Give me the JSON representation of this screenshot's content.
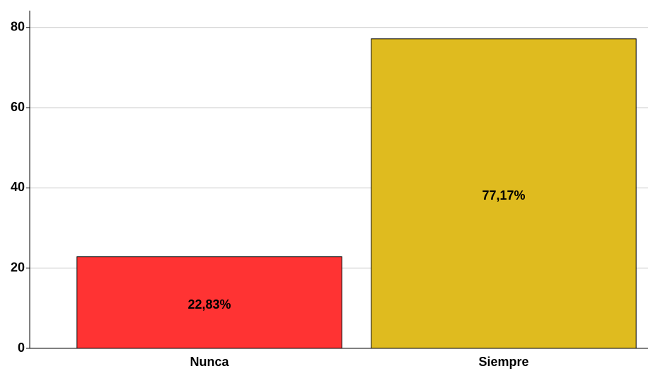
{
  "chart_data": {
    "type": "bar",
    "categories": [
      "Nunca",
      "Siempre"
    ],
    "values": [
      22.83,
      77.17
    ],
    "value_labels": [
      "22,83%",
      "77,17%"
    ],
    "colors": [
      "#ff3333",
      "#dfbb1f"
    ],
    "ylim": [
      0,
      84.2
    ],
    "yticks": [
      0,
      20,
      40,
      60,
      80
    ],
    "grid": true
  }
}
